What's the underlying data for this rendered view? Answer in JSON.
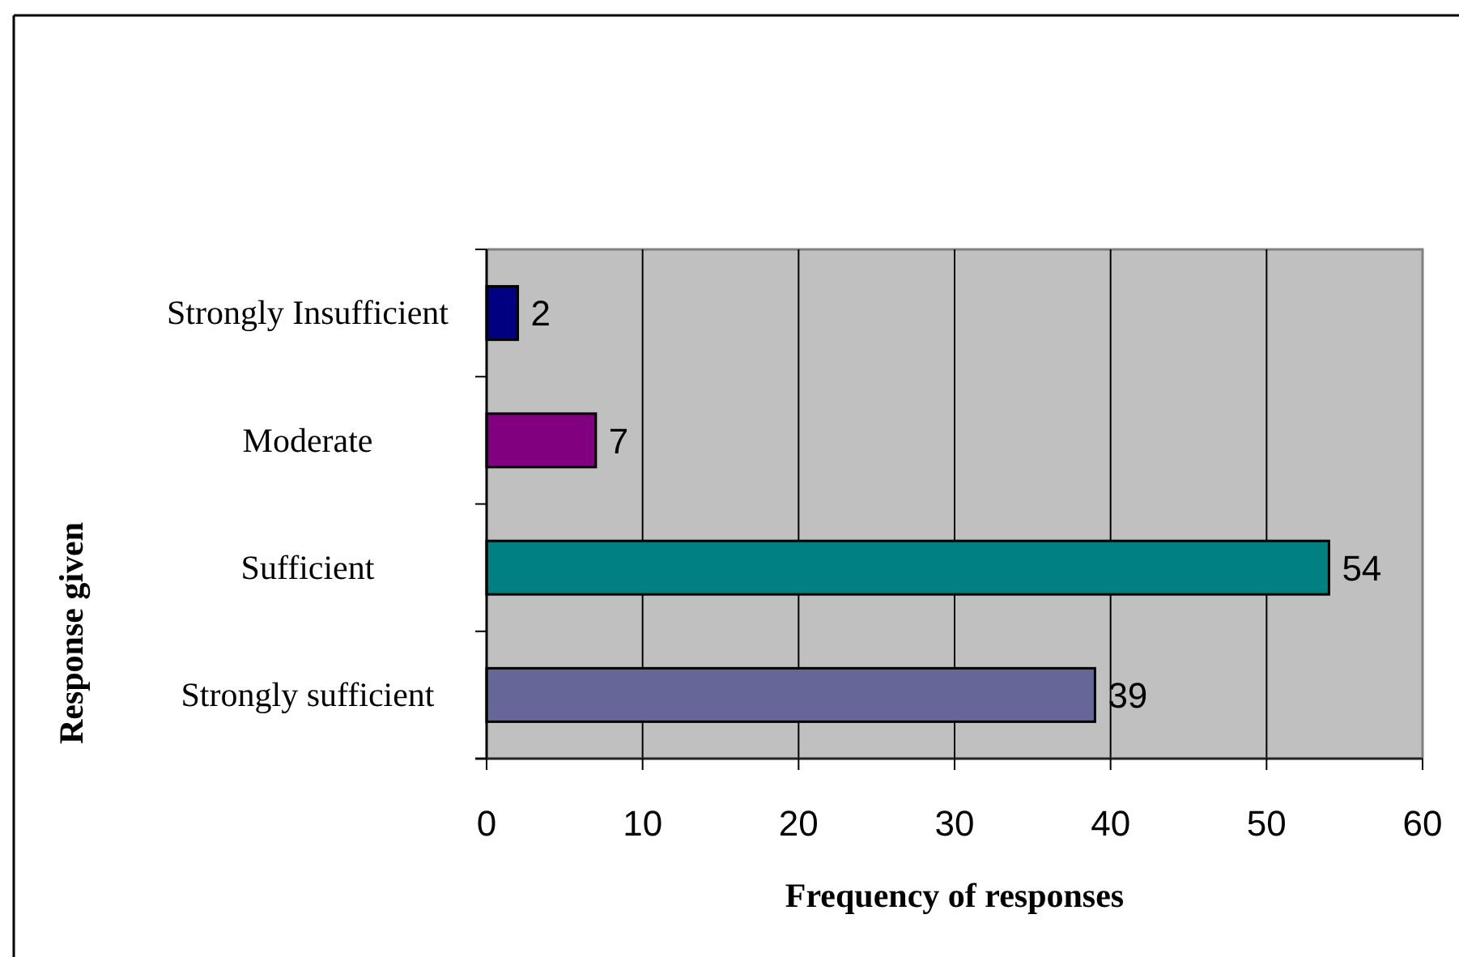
{
  "chart_data": {
    "type": "bar",
    "orientation": "horizontal",
    "categories": [
      "Strongly Insufficient",
      "Moderate",
      "Sufficient",
      "Strongly sufficient"
    ],
    "values": [
      2,
      7,
      54,
      39
    ],
    "colors": [
      "#000080",
      "#800080",
      "#008080",
      "#666699"
    ],
    "xlabel": "Frequency of responses",
    "ylabel": "Response given",
    "xlim": [
      0,
      60
    ],
    "xticks": [
      0,
      10,
      20,
      30,
      40,
      50,
      60
    ],
    "grid": "x",
    "data_labels": true
  }
}
